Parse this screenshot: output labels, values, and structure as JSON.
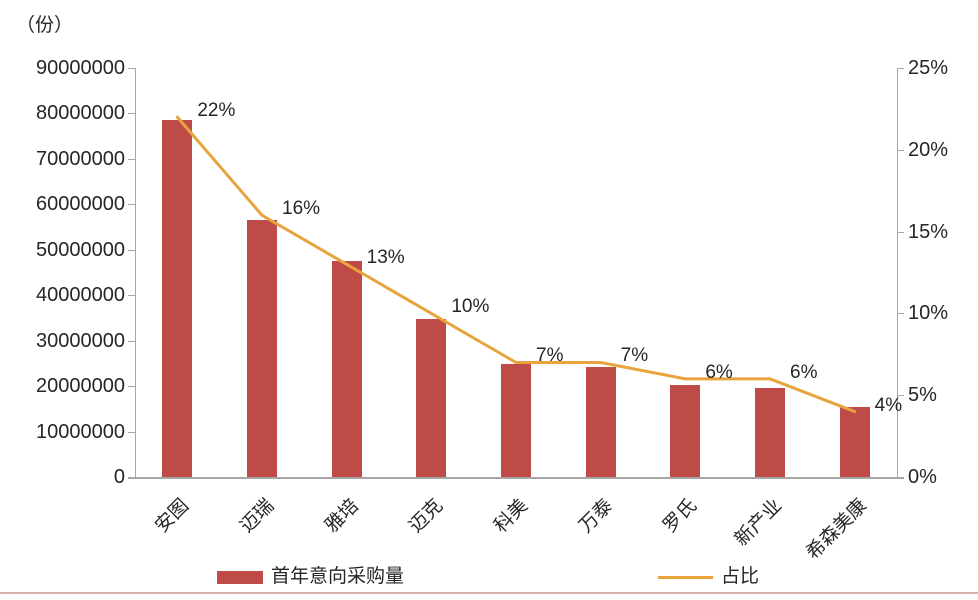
{
  "chart_data": {
    "type": "bar",
    "combo": "bar+line",
    "title": "",
    "unit_label": "（份）",
    "categories": [
      "安图",
      "迈瑞",
      "雅培",
      "迈克",
      "科美",
      "万泰",
      "罗氏",
      "新产业",
      "希森美康"
    ],
    "series": [
      {
        "name": "首年意向采购量",
        "type": "bar",
        "axis": "left",
        "values": [
          78500000,
          56500000,
          47500000,
          34800000,
          24900000,
          24300000,
          20200000,
          19600000,
          15500000
        ]
      },
      {
        "name": "占比",
        "type": "line",
        "axis": "right",
        "values": [
          22,
          16,
          13,
          10,
          7,
          7,
          6,
          6,
          4
        ],
        "labels": [
          "22%",
          "16%",
          "13%",
          "10%",
          "7%",
          "7%",
          "6%",
          "6%",
          "4%"
        ]
      }
    ],
    "left_axis": {
      "min": 0,
      "max": 90000000,
      "ticks": [
        "90000000",
        "80000000",
        "70000000",
        "60000000",
        "50000000",
        "40000000",
        "30000000",
        "20000000",
        "10000000",
        "0"
      ]
    },
    "right_axis": {
      "min": 0,
      "max": 25,
      "ticks": [
        "25%",
        "20%",
        "15%",
        "10%",
        "5%",
        "0%"
      ]
    },
    "grid": false,
    "legend": {
      "position": "bottom",
      "items": [
        {
          "label": "首年意向采购量",
          "type": "bar"
        },
        {
          "label": "占比",
          "type": "line"
        }
      ]
    },
    "colors": {
      "bar": "#be4b48",
      "line": "#e8a33d",
      "axis": "#a6a6a6",
      "text": "#262626",
      "bottom_border": "#d8b0ac"
    }
  }
}
